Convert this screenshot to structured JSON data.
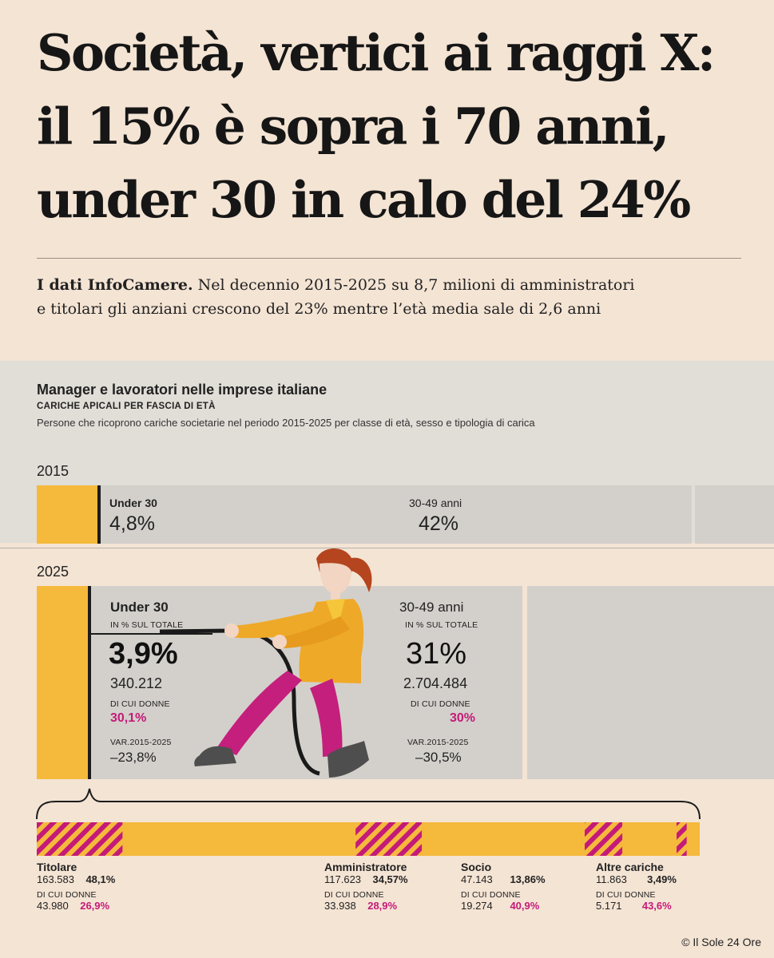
{
  "headline": {
    "line1": "Società, vertici ai raggi X:",
    "line2": "il 15% è sopra i 70 anni,",
    "line3": "under 30 in calo del 24%"
  },
  "intro": {
    "lead": "I dati InfoCamere.",
    "line1": " Nel decennio 2015-2025 su 8,7 milioni di amministratori",
    "line2": "e titolari gli anziani crescono del 23% mentre l’età media sale di 2,6 anni"
  },
  "chart": {
    "title": "Manager e lavoratori nelle imprese italiane",
    "subtitle": "CARICHE APICALI PER FASCIA DI ETÀ",
    "description": "Persone che ricoprono cariche societarie nel periodo 2015-2025 per classe di età, sesso e tipologia di carica"
  },
  "chart_data": {
    "type": "bar",
    "title": "Manager e lavoratori nelle imprese italiane",
    "subtitle": "CARICHE APICALI PER FASCIA DI ETÀ",
    "years": [
      {
        "year": "2015",
        "groups": [
          {
            "name": "Under 30",
            "share_label": "4,8%",
            "share": 4.8
          },
          {
            "name": "30-49 anni",
            "share_label": "42%",
            "share": 42
          }
        ]
      },
      {
        "year": "2025",
        "groups": [
          {
            "name": "Under 30",
            "share_caption": "IN % SUL TOTALE",
            "share_label": "3,9%",
            "share": 3.9,
            "count": "340.212",
            "women_caption": "DI CUI DONNE",
            "women_label": "30,1%",
            "women": 30.1,
            "var_caption": "VAR.2015-2025",
            "var_label": "–23,8%",
            "var": -23.8
          },
          {
            "name": "30-49 anni",
            "share_caption": "IN % SUL TOTALE",
            "share_label": "31%",
            "share": 31,
            "count": "2.704.484",
            "women_caption": "DI CUI DONNE",
            "women_label": "30%",
            "women": 30,
            "var_caption": "VAR.2015-2025",
            "var_label": "–30,5%",
            "var": -30.5
          }
        ]
      }
    ],
    "roles_under30": [
      {
        "name": "Titolare",
        "count": "163.583",
        "share_label": "48,1%",
        "share": 48.1,
        "women_count": "43.980",
        "women_label": "26,9%",
        "women": 26.9
      },
      {
        "name": "Amministratore",
        "count": "117.623",
        "share_label": "34,57%",
        "share": 34.57,
        "women_count": "33.938",
        "women_label": "28,9%",
        "women": 28.9
      },
      {
        "name": "Socio",
        "count": "47.143",
        "share_label": "13,86%",
        "share": 13.86,
        "women_count": "19.274",
        "women_label": "40,9%",
        "women": 40.9
      },
      {
        "name": "Altre cariche",
        "count": "11.863",
        "share_label": "3,49%",
        "share": 3.49,
        "women_count": "5.171",
        "women_label": "43,6%",
        "women": 43.6
      }
    ],
    "women_caption": "DI CUI DONNE",
    "colors": {
      "bar": "#f5b93c",
      "women_hatch": "#c41a78",
      "panel": "#d3d0cb",
      "accent_text": "#c41a78"
    }
  },
  "credit": "© Il Sole 24 Ore"
}
